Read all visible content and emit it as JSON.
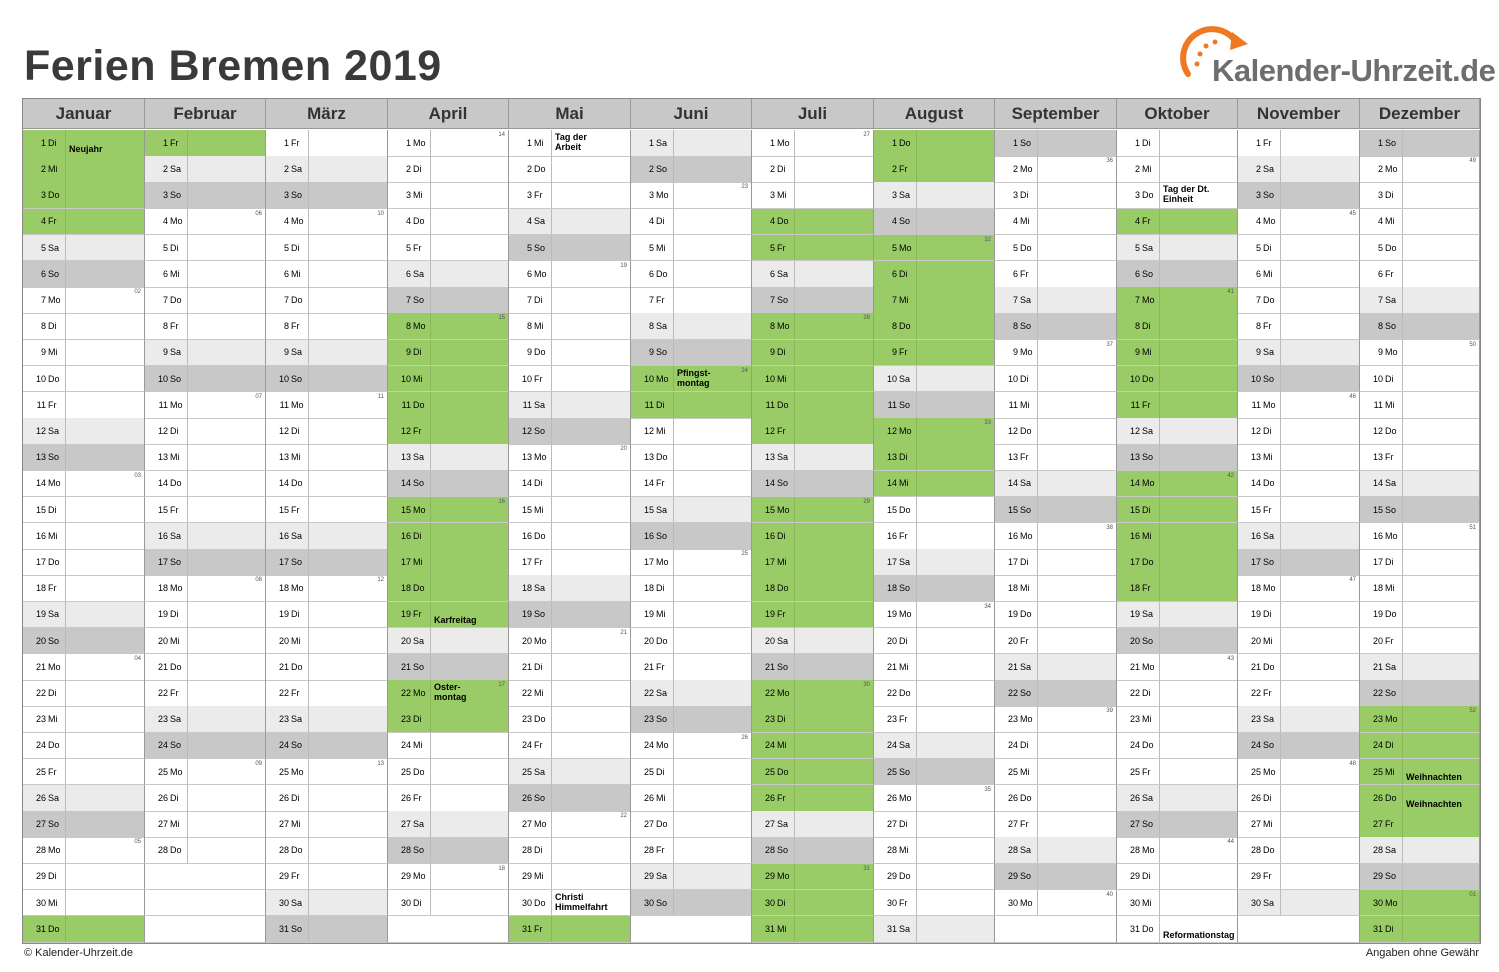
{
  "title": "Ferien Bremen 2019",
  "logo": {
    "text": "Kalender-Uhrzeit.de",
    "icon": "clock-arrow-logo-icon",
    "accent_color": "#f07820"
  },
  "footer": {
    "left": "© Kalender-Uhrzeit.de",
    "right": "Angaben ohne Gewähr"
  },
  "colors": {
    "holiday": "#99cc66",
    "saturday": "#ebebeb",
    "sunday": "#c8c8c8",
    "header": "#c8c8c8"
  },
  "months": [
    {
      "name": "Januar",
      "first_weekday": 1,
      "days": 31,
      "holidays": [
        1,
        2,
        3,
        4,
        31
      ],
      "labels": {
        "1": "Neujahr"
      },
      "weeks": {
        "7": "02",
        "14": "03",
        "21": "04",
        "28": "05"
      }
    },
    {
      "name": "Februar",
      "first_weekday": 4,
      "days": 28,
      "holidays": [
        1
      ],
      "labels": {},
      "weeks": {
        "4": "06",
        "11": "07",
        "18": "08",
        "25": "09"
      }
    },
    {
      "name": "März",
      "first_weekday": 4,
      "days": 31,
      "holidays": [],
      "labels": {},
      "weeks": {
        "4": "10",
        "11": "11",
        "18": "12",
        "25": "13"
      }
    },
    {
      "name": "April",
      "first_weekday": 0,
      "days": 30,
      "holidays": [
        8,
        9,
        10,
        11,
        12,
        15,
        16,
        17,
        18,
        19,
        22,
        23
      ],
      "labels": {
        "19": "Karfreitag",
        "22": "Oster-\nmontag"
      },
      "weeks": {
        "1": "14",
        "8": "15",
        "15": "16",
        "22": "17",
        "29": "18"
      }
    },
    {
      "name": "Mai",
      "first_weekday": 2,
      "days": 31,
      "holidays": [
        31
      ],
      "labels": {
        "1": "Tag der\nArbeit",
        "30": "Christi\nHimmelfahrt"
      },
      "weeks": {
        "6": "19",
        "13": "20",
        "20": "21",
        "27": "22"
      }
    },
    {
      "name": "Juni",
      "first_weekday": 5,
      "days": 30,
      "holidays": [
        10,
        11
      ],
      "labels": {
        "10": "Pfingst-\nmontag"
      },
      "weeks": {
        "3": "23",
        "10": "24",
        "17": "25",
        "24": "26"
      }
    },
    {
      "name": "Juli",
      "first_weekday": 0,
      "days": 31,
      "holidays": [
        4,
        5,
        8,
        9,
        10,
        11,
        12,
        15,
        16,
        17,
        18,
        19,
        22,
        23,
        24,
        25,
        26,
        29,
        30,
        31
      ],
      "labels": {},
      "weeks": {
        "1": "27",
        "8": "28",
        "15": "29",
        "22": "30",
        "29": "31"
      }
    },
    {
      "name": "August",
      "first_weekday": 3,
      "days": 31,
      "holidays": [
        1,
        2,
        5,
        6,
        7,
        8,
        9,
        12,
        13,
        14
      ],
      "labels": {},
      "weeks": {
        "5": "32",
        "12": "33",
        "19": "34",
        "26": "35"
      }
    },
    {
      "name": "September",
      "first_weekday": 6,
      "days": 30,
      "holidays": [],
      "labels": {},
      "weeks": {
        "2": "36",
        "9": "37",
        "16": "38",
        "23": "39",
        "30": "40"
      }
    },
    {
      "name": "Oktober",
      "first_weekday": 1,
      "days": 31,
      "holidays": [
        4,
        7,
        8,
        9,
        10,
        11,
        14,
        15,
        16,
        17,
        18
      ],
      "labels": {
        "3": "Tag der Dt.\nEinheit",
        "31": "Reformationstag"
      },
      "weeks": {
        "7": "41",
        "14": "42",
        "21": "43",
        "28": "44"
      }
    },
    {
      "name": "November",
      "first_weekday": 4,
      "days": 30,
      "holidays": [],
      "labels": {},
      "weeks": {
        "4": "45",
        "11": "46",
        "18": "47",
        "25": "48"
      }
    },
    {
      "name": "Dezember",
      "first_weekday": 6,
      "days": 31,
      "holidays": [
        23,
        24,
        25,
        26,
        27,
        30,
        31
      ],
      "labels": {
        "25": "Weihnachten",
        "26": "Weihnachten"
      },
      "weeks": {
        "2": "49",
        "9": "50",
        "16": "51",
        "23": "52",
        "30": "01"
      }
    }
  ],
  "weekday_abbr": [
    "Mo",
    "Di",
    "Mi",
    "Do",
    "Fr",
    "Sa",
    "So"
  ]
}
